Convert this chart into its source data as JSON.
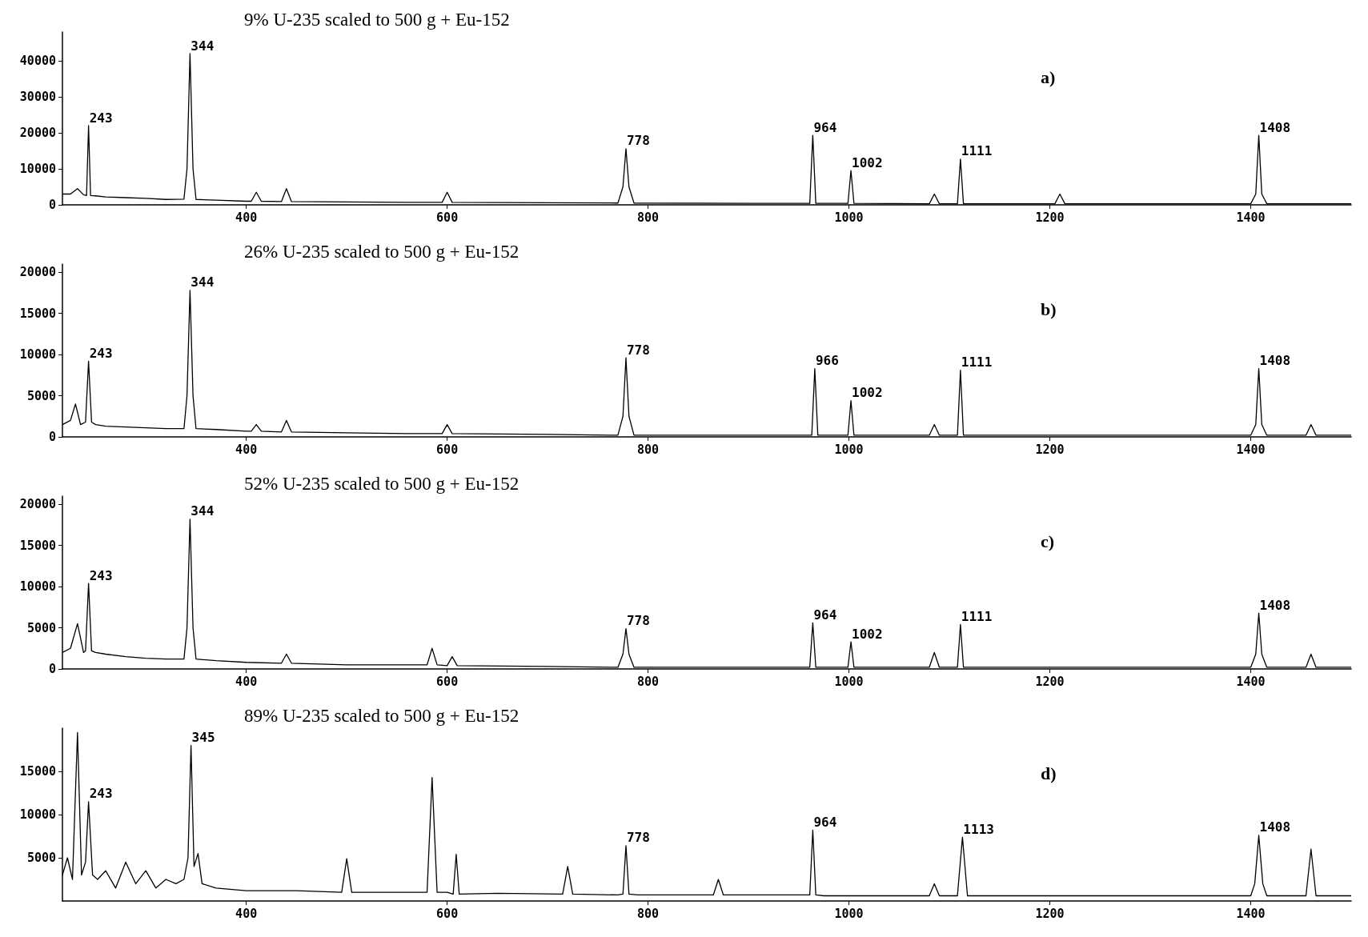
{
  "chart_data": [
    {
      "type": "line",
      "title": "9% U-235 scaled to 500 g + Eu-152",
      "xlim": [
        217,
        1500
      ],
      "ylim": [
        0,
        48000
      ],
      "xticks": [
        400,
        600,
        800,
        1000,
        1200,
        1400
      ],
      "yticks": [
        0,
        10000,
        20000,
        30000,
        40000
      ],
      "grid": false,
      "marker": "none",
      "line_style": "solid",
      "x": [
        217,
        225,
        232,
        238,
        241,
        243,
        245,
        250,
        260,
        280,
        300,
        320,
        338,
        341,
        344,
        347,
        350,
        370,
        400,
        405,
        410,
        415,
        435,
        440,
        445,
        500,
        560,
        595,
        600,
        605,
        700,
        770,
        775,
        778,
        781,
        786,
        900,
        955,
        961,
        964,
        967,
        975,
        999,
        1002,
        1005,
        1080,
        1085,
        1090,
        1108,
        1111,
        1114,
        1205,
        1210,
        1215,
        1400,
        1405,
        1408,
        1411,
        1416,
        1500
      ],
      "series": [
        {
          "color": "#000000",
          "values": [
            3000,
            3000,
            4500,
            2800,
            2600,
            22000,
            2600,
            2500,
            2200,
            2000,
            1800,
            1500,
            1600,
            10000,
            42000,
            10000,
            1500,
            1300,
            1000,
            1000,
            3500,
            1000,
            900,
            4500,
            900,
            800,
            700,
            700,
            3500,
            700,
            600,
            500,
            5000,
            15600,
            5000,
            500,
            400,
            400,
            400,
            19300,
            400,
            400,
            400,
            9500,
            400,
            300,
            3000,
            300,
            300,
            12700,
            300,
            300,
            3000,
            300,
            300,
            3000,
            19300,
            3000,
            300,
            300
          ]
        }
      ],
      "annotations": [
        {
          "text": "243",
          "x": 243,
          "y": 22000
        },
        {
          "text": "344",
          "x": 344,
          "y": 42000
        },
        {
          "text": "778",
          "x": 778,
          "y": 15600
        },
        {
          "text": "964",
          "x": 964,
          "y": 19300
        },
        {
          "text": "1002",
          "x": 1002,
          "y": 9500
        },
        {
          "text": "1111",
          "x": 1111,
          "y": 12700
        },
        {
          "text": "1408",
          "x": 1408,
          "y": 19300
        },
        "a)"
      ]
    },
    {
      "type": "line",
      "title": "26% U-235 scaled to 500 g + Eu-152",
      "xlim": [
        217,
        1500
      ],
      "ylim": [
        0,
        21000
      ],
      "xticks": [
        400,
        600,
        800,
        1000,
        1200,
        1400
      ],
      "yticks": [
        0,
        5000,
        10000,
        15000,
        20000
      ],
      "grid": false,
      "marker": "none",
      "line_style": "solid",
      "x": [
        217,
        225,
        230,
        235,
        240,
        243,
        246,
        250,
        260,
        280,
        300,
        320,
        338,
        341,
        344,
        347,
        350,
        370,
        400,
        405,
        410,
        415,
        435,
        440,
        445,
        500,
        560,
        595,
        600,
        605,
        700,
        770,
        775,
        778,
        781,
        786,
        900,
        955,
        963,
        966,
        969,
        975,
        999,
        1002,
        1005,
        1080,
        1085,
        1090,
        1108,
        1111,
        1114,
        1400,
        1405,
        1408,
        1411,
        1416,
        1455,
        1460,
        1465,
        1500
      ],
      "series": [
        {
          "color": "#000000",
          "values": [
            1500,
            2000,
            4000,
            1500,
            1800,
            9200,
            1800,
            1500,
            1300,
            1200,
            1100,
            1000,
            1000,
            5000,
            17800,
            5000,
            1000,
            900,
            700,
            700,
            1500,
            700,
            600,
            2000,
            600,
            500,
            400,
            400,
            1500,
            400,
            300,
            200,
            2500,
            9600,
            2500,
            200,
            200,
            200,
            200,
            8300,
            200,
            200,
            200,
            4400,
            200,
            200,
            1500,
            200,
            200,
            8100,
            200,
            200,
            1500,
            8300,
            1500,
            200,
            200,
            1500,
            200,
            200
          ]
        }
      ],
      "annotations": [
        {
          "text": "243",
          "x": 243,
          "y": 9200
        },
        {
          "text": "344",
          "x": 344,
          "y": 17800
        },
        {
          "text": "778",
          "x": 778,
          "y": 9600
        },
        {
          "text": "966",
          "x": 966,
          "y": 8300
        },
        {
          "text": "1002",
          "x": 1002,
          "y": 4400
        },
        {
          "text": "1111",
          "x": 1111,
          "y": 8100
        },
        {
          "text": "1408",
          "x": 1408,
          "y": 8300
        },
        "b)"
      ]
    },
    {
      "type": "line",
      "title": "52% U-235 scaled to 500 g + Eu-152",
      "xlim": [
        217,
        1500
      ],
      "ylim": [
        0,
        21000
      ],
      "xticks": [
        400,
        600,
        800,
        1000,
        1200,
        1400
      ],
      "yticks": [
        0,
        5000,
        10000,
        15000,
        20000
      ],
      "grid": false,
      "marker": "none",
      "line_style": "solid",
      "x": [
        217,
        225,
        232,
        238,
        240,
        243,
        246,
        250,
        260,
        280,
        300,
        320,
        338,
        341,
        344,
        347,
        350,
        370,
        400,
        435,
        440,
        445,
        500,
        560,
        580,
        585,
        590,
        600,
        605,
        610,
        700,
        770,
        775,
        778,
        781,
        786,
        900,
        955,
        961,
        964,
        967,
        975,
        999,
        1002,
        1005,
        1080,
        1085,
        1090,
        1108,
        1111,
        1114,
        1400,
        1405,
        1408,
        1411,
        1416,
        1455,
        1460,
        1465,
        1500
      ],
      "series": [
        {
          "color": "#000000",
          "values": [
            2000,
            2500,
            5500,
            2000,
            2200,
            10400,
            2200,
            2000,
            1800,
            1500,
            1300,
            1200,
            1200,
            5000,
            18200,
            5000,
            1200,
            1000,
            800,
            700,
            1800,
            700,
            500,
            500,
            500,
            2500,
            500,
            400,
            1500,
            400,
            300,
            200,
            1800,
            4900,
            1800,
            200,
            200,
            200,
            200,
            5600,
            200,
            200,
            200,
            3300,
            200,
            200,
            2000,
            200,
            200,
            5400,
            200,
            200,
            1800,
            6800,
            1800,
            200,
            200,
            1800,
            200,
            200
          ]
        }
      ],
      "annotations": [
        {
          "text": "243",
          "x": 243,
          "y": 10400
        },
        {
          "text": "344",
          "x": 344,
          "y": 18200
        },
        {
          "text": "778",
          "x": 778,
          "y": 4900
        },
        {
          "text": "964",
          "x": 964,
          "y": 5600
        },
        {
          "text": "1002",
          "x": 1002,
          "y": 3300
        },
        {
          "text": "1111",
          "x": 1111,
          "y": 5400
        },
        {
          "text": "1408",
          "x": 1408,
          "y": 6800
        },
        "c)"
      ]
    },
    {
      "type": "line",
      "title": "89% U-235 scaled to 500 g + Eu-152",
      "xlim": [
        217,
        1500
      ],
      "ylim": [
        0,
        20000
      ],
      "xticks": [
        400,
        600,
        800,
        1000,
        1200,
        1400
      ],
      "yticks": [
        5000,
        10000,
        15000
      ],
      "grid": false,
      "marker": "none",
      "line_style": "solid",
      "x": [
        217,
        222,
        227,
        232,
        236,
        240,
        243,
        247,
        252,
        260,
        270,
        280,
        290,
        300,
        310,
        320,
        330,
        338,
        342,
        345,
        348,
        352,
        356,
        370,
        400,
        450,
        495,
        500,
        505,
        570,
        580,
        585,
        590,
        600,
        606,
        609,
        612,
        650,
        715,
        720,
        725,
        770,
        775,
        778,
        781,
        790,
        865,
        870,
        875,
        955,
        961,
        964,
        967,
        975,
        1080,
        1085,
        1090,
        1108,
        1113,
        1118,
        1200,
        1400,
        1404,
        1408,
        1412,
        1416,
        1455,
        1460,
        1465,
        1500
      ],
      "series": [
        {
          "color": "#000000",
          "values": [
            3000,
            5000,
            2500,
            19500,
            3000,
            4500,
            11500,
            3000,
            2500,
            3500,
            1500,
            4500,
            2000,
            3500,
            1500,
            2500,
            2000,
            2500,
            5000,
            18000,
            4000,
            5500,
            2000,
            1500,
            1200,
            1200,
            1000,
            4900,
            1000,
            1000,
            1000,
            14300,
            1000,
            1000,
            800,
            5400,
            800,
            900,
            800,
            4000,
            800,
            700,
            800,
            6400,
            800,
            700,
            700,
            2500,
            700,
            700,
            700,
            8200,
            700,
            600,
            600,
            2000,
            600,
            600,
            7400,
            600,
            600,
            600,
            2000,
            7600,
            2000,
            600,
            600,
            6000,
            600,
            600
          ]
        }
      ],
      "annotations": [
        {
          "text": "243",
          "x": 243,
          "y": 11500
        },
        {
          "text": "345",
          "x": 345,
          "y": 18000
        },
        {
          "text": "778",
          "x": 778,
          "y": 6400
        },
        {
          "text": "964",
          "x": 964,
          "y": 8200
        },
        {
          "text": "1113",
          "x": 1113,
          "y": 7400
        },
        {
          "text": "1408",
          "x": 1408,
          "y": 7600
        },
        "d)"
      ]
    }
  ]
}
